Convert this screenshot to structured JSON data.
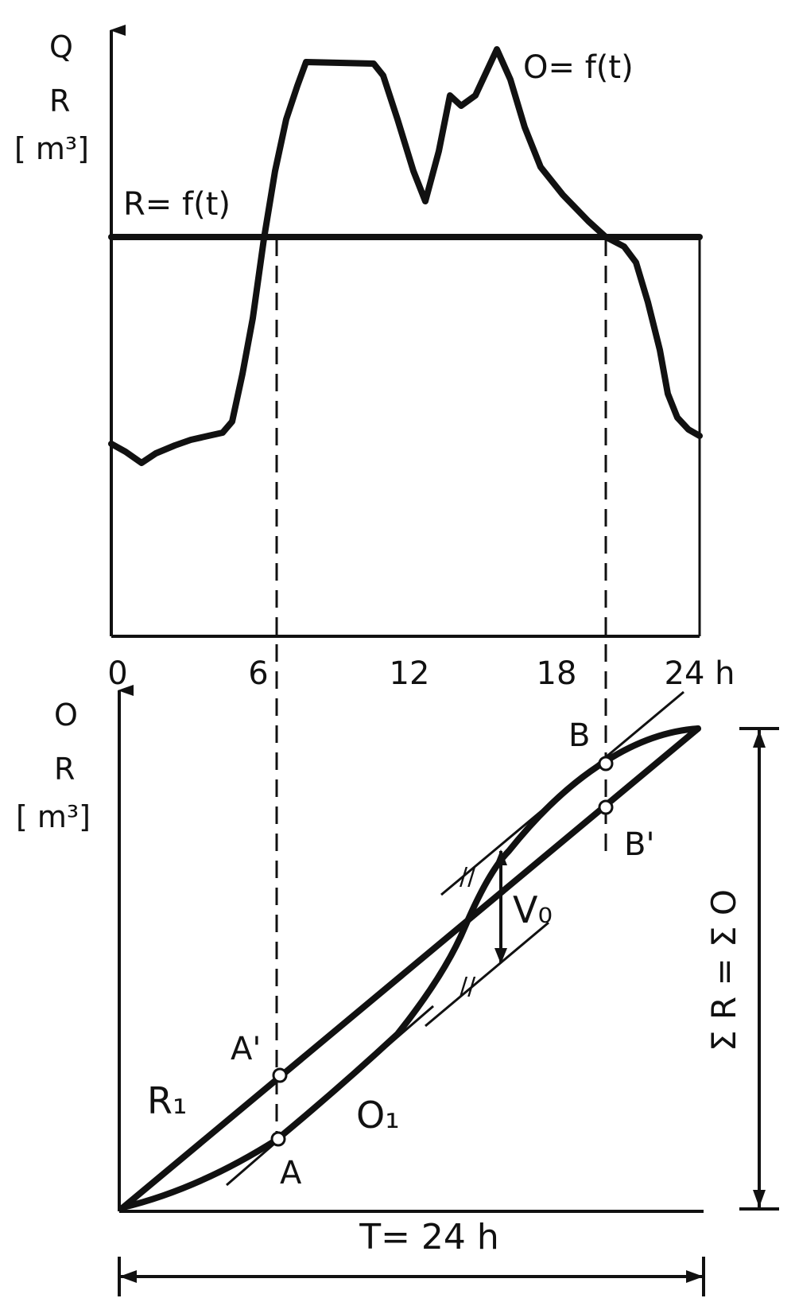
{
  "colors": {
    "ink": "#111111",
    "paper": "#ffffff"
  },
  "top_chart": {
    "y_axis_label_lines": [
      "Q",
      "R",
      "[ m³]"
    ],
    "x_ticks": [
      {
        "t": 0,
        "label": "0"
      },
      {
        "t": 6,
        "label": "6"
      },
      {
        "t": 12,
        "label": "12"
      },
      {
        "t": 18,
        "label": "18"
      },
      {
        "t": 24,
        "label": "24 h"
      }
    ],
    "supply_label": "R= f(t)",
    "demand_label": "O= f(t)"
  },
  "bottom_chart": {
    "y_axis_label_lines": [
      "O",
      "R",
      "[ m³]"
    ],
    "supply_curve_label": "R₁",
    "demand_curve_label": "O₁",
    "point_labels": {
      "A": "A",
      "A_prime": "A'",
      "B": "B",
      "B_prime": "B'"
    },
    "storage_label": "V₀",
    "total_label": "Σ R = Σ O",
    "period_label": "T= 24 h",
    "tangent_mark": "//"
  }
}
